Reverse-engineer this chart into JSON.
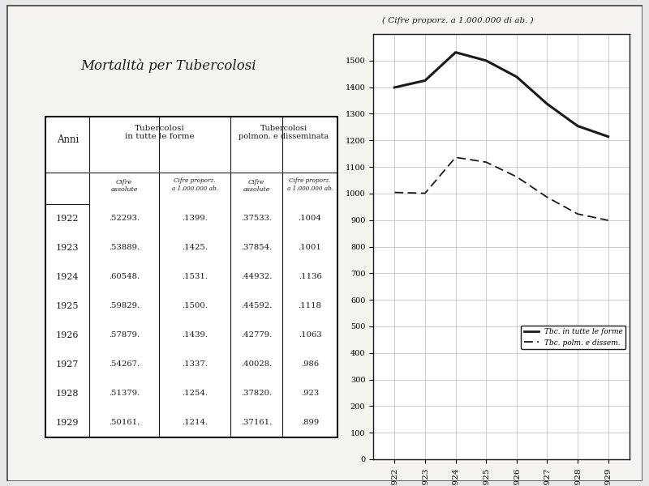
{
  "title": "Mortalità per Tubercolosi",
  "subtitle": "( Cifre proporz. a 1.000.000 di ab. )",
  "years": [
    1922,
    1923,
    1924,
    1925,
    1926,
    1927,
    1928,
    1929
  ],
  "tbc_all_abs": [
    52293,
    53889,
    60548,
    59829,
    57879,
    54267,
    51379,
    50161
  ],
  "tbc_all_prop": [
    1399,
    1425,
    1531,
    1500,
    1439,
    1337,
    1254,
    1214
  ],
  "tbc_pulm_abs": [
    37533,
    37854,
    44932,
    44592,
    42779,
    40028,
    37820,
    37161
  ],
  "tbc_pulm_prop": [
    1004,
    1001,
    1136,
    1118,
    1063,
    986,
    923,
    899
  ],
  "legend_solid": "Tbc. in tutte le forme",
  "legend_dashed": "Tbc. polm. e dissem.",
  "bg_color": "#e8e8e8",
  "paper_color": "#f5f4f0",
  "white": "#ffffff",
  "line_color": "#1a1a1a",
  "ylim": [
    0,
    1600
  ],
  "yticks": [
    0,
    100,
    200,
    300,
    400,
    500,
    600,
    700,
    800,
    900,
    1000,
    1100,
    1200,
    1300,
    1400,
    1500
  ]
}
